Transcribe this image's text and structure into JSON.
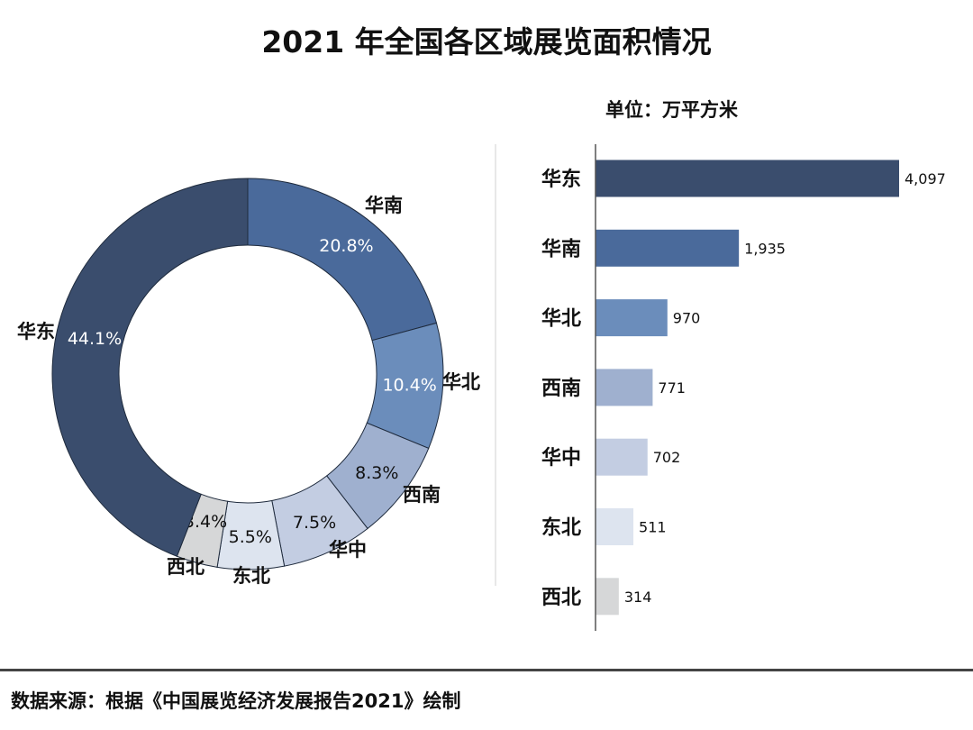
{
  "chart_data": [
    {
      "type": "pie",
      "variant": "donut",
      "title": "2021 年全国各区域展览面积情况",
      "categories": [
        "华南",
        "华北",
        "西南",
        "华中",
        "东北",
        "西北",
        "华东"
      ],
      "values": [
        20.8,
        10.4,
        8.3,
        7.5,
        5.5,
        3.4,
        44.1
      ],
      "value_labels": [
        "20.8%",
        "10.4%",
        "8.3%",
        "7.5%",
        "5.5%",
        "3.4%",
        "44.1%"
      ],
      "colors": [
        "#4a6a9b",
        "#6b8dbb",
        "#9fb0cf",
        "#c3cde2",
        "#dde4ef",
        "#d6d7d8",
        "#3a4d6d"
      ],
      "label_colors": [
        "#ffffff",
        "#ffffff",
        "#111111",
        "#111111",
        "#111111",
        "#111111",
        "#ffffff"
      ]
    },
    {
      "type": "bar",
      "orientation": "horizontal",
      "unit_label": "单位：万平方米",
      "categories": [
        "华东",
        "华南",
        "华北",
        "西南",
        "华中",
        "东北",
        "西北"
      ],
      "values": [
        4097,
        1935,
        970,
        771,
        702,
        511,
        314
      ],
      "value_labels": [
        "4,097",
        "1,935",
        "970",
        "771",
        "702",
        "511",
        "314"
      ],
      "colors": [
        "#3a4d6d",
        "#4a6a9b",
        "#6b8dbb",
        "#9fb0cf",
        "#c3cde2",
        "#dde4ef",
        "#d6d7d8"
      ],
      "xlim": [
        0,
        4097
      ]
    }
  ],
  "title": "2021 年全国各区域展览面积情况",
  "unit": "单位：万平方米",
  "source": "数据来源：根据《中国展览经济发展报告2021》绘制"
}
